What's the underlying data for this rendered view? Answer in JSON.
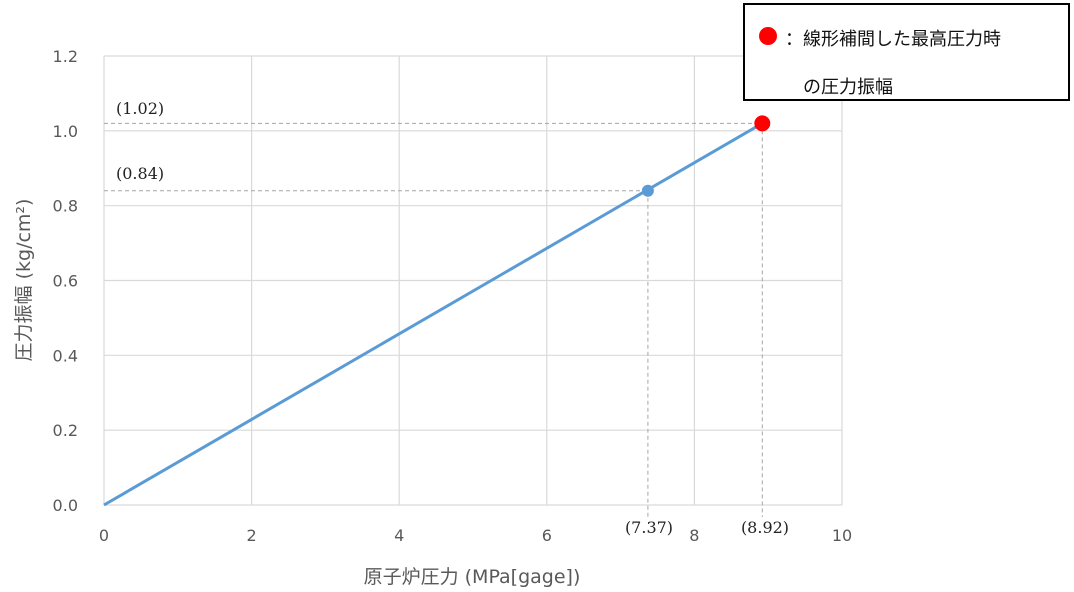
{
  "chart_data": {
    "type": "line",
    "xlabel": "原子炉圧力 (MPa[gage])",
    "ylabel": "圧力振幅 (kg/cm²)",
    "xlim": [
      0,
      10
    ],
    "ylim": [
      0,
      1.2
    ],
    "x_ticks": [
      "0",
      "2",
      "4",
      "6",
      "8",
      "10"
    ],
    "y_ticks": [
      "0.0",
      "0.2",
      "0.4",
      "0.6",
      "0.8",
      "1.0",
      "1.2"
    ],
    "grid": true,
    "series": [
      {
        "values": [
          {
            "x": 0,
            "y": 0
          },
          {
            "x": 8.92,
            "y": 1.02
          }
        ]
      }
    ],
    "markers": [
      {
        "x": 7.37,
        "y": 0.84,
        "color": "#5b9bd5"
      },
      {
        "x": 8.92,
        "y": 1.02,
        "color": "#ff0000"
      }
    ],
    "annotations": {
      "y1": "(1.02)",
      "y2": "(0.84)",
      "x1": "(7.37)",
      "x2": "(8.92)"
    },
    "line_color": "#5b9bd5",
    "grid_color": "#d9d9d9",
    "guide_color": "#a6a6a6"
  },
  "legend": {
    "line1": "：線形補間した最高圧力時",
    "line2": "の圧力振幅",
    "dot_color": "#ff0000"
  }
}
